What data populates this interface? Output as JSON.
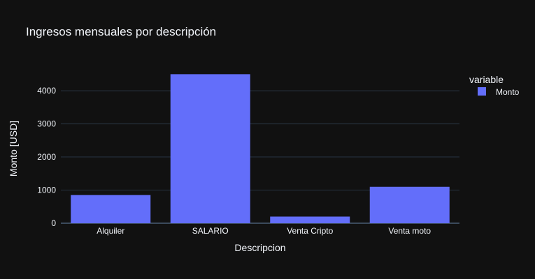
{
  "chart_data": {
    "type": "bar",
    "title": "Ingresos mensuales por descripción",
    "xlabel": "Descripcion",
    "ylabel": "Monto [USD]",
    "categories": [
      "Alquiler",
      "SALARIO",
      "Venta Cripto",
      "Venta moto"
    ],
    "series": [
      {
        "name": "Monto",
        "values": [
          850,
          4500,
          200,
          1100
        ]
      }
    ],
    "ylim": [
      0,
      4950
    ],
    "yticks": [
      0,
      1000,
      2000,
      3000,
      4000
    ],
    "ytick_labels": [
      "0",
      "1000",
      "2000",
      "3000",
      "4000"
    ],
    "grid": true,
    "legend": {
      "title": "variable",
      "position": "right"
    },
    "colors": {
      "background": "#111111",
      "bar": "#636efa",
      "grid": "#283442",
      "zeroline": "#3b4a5c",
      "text": "#f2f5fa"
    }
  }
}
